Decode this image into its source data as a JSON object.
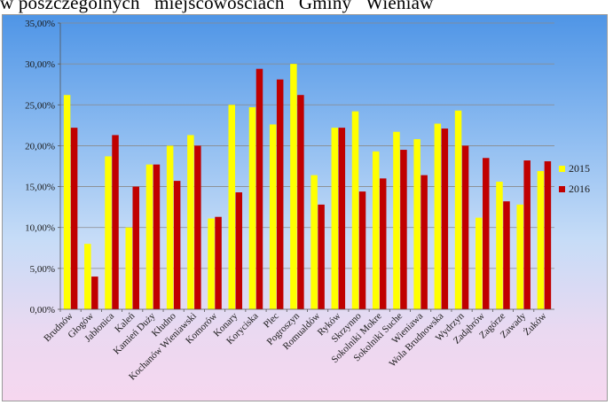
{
  "header": {
    "text": "w poszczególnych   miejscowościach   Gminy   Wieniaw"
  },
  "chart_data": {
    "type": "bar",
    "categories": [
      "Brudnów",
      "Głogów",
      "Jabłonica",
      "Kaleń",
      "Kamień Duży",
      "Kłudno",
      "Kochanów Wieniawski",
      "Komorów",
      "Konary",
      "Koryciska",
      "Plec",
      "Pogroszyn",
      "Romualdów",
      "Ryków",
      "Skrzynno",
      "Sokolniki Mokre",
      "Sokolniki Suche",
      "Wieniawa",
      "Wola Brudnowska",
      "Wydrzyn",
      "Zadąbrów",
      "Zagórze",
      "Zawady",
      "Żuków"
    ],
    "series": [
      {
        "name": "2015",
        "color": "#ffff00",
        "values": [
          26.2,
          8.0,
          18.7,
          10.0,
          17.7,
          20.0,
          21.3,
          11.1,
          25.0,
          24.7,
          22.6,
          30.0,
          16.4,
          22.2,
          24.2,
          19.3,
          21.7,
          20.8,
          22.7,
          24.3,
          11.2,
          15.6,
          12.8,
          16.9
        ]
      },
      {
        "name": "2016",
        "color": "#c00000",
        "values": [
          22.2,
          4.0,
          21.3,
          15.0,
          17.7,
          15.7,
          20.0,
          11.3,
          14.3,
          29.4,
          28.1,
          26.2,
          12.8,
          22.2,
          14.4,
          16.0,
          19.5,
          16.4,
          22.1,
          20.0,
          18.5,
          13.2,
          18.2,
          18.1
        ]
      }
    ],
    "ylim": [
      0,
      35
    ],
    "yticks": [
      "0,00%",
      "5,00%",
      "10,00%",
      "15,00%",
      "20,00%",
      "25,00%",
      "30,00%",
      "35,00%"
    ],
    "grid": true,
    "legend": "right"
  }
}
